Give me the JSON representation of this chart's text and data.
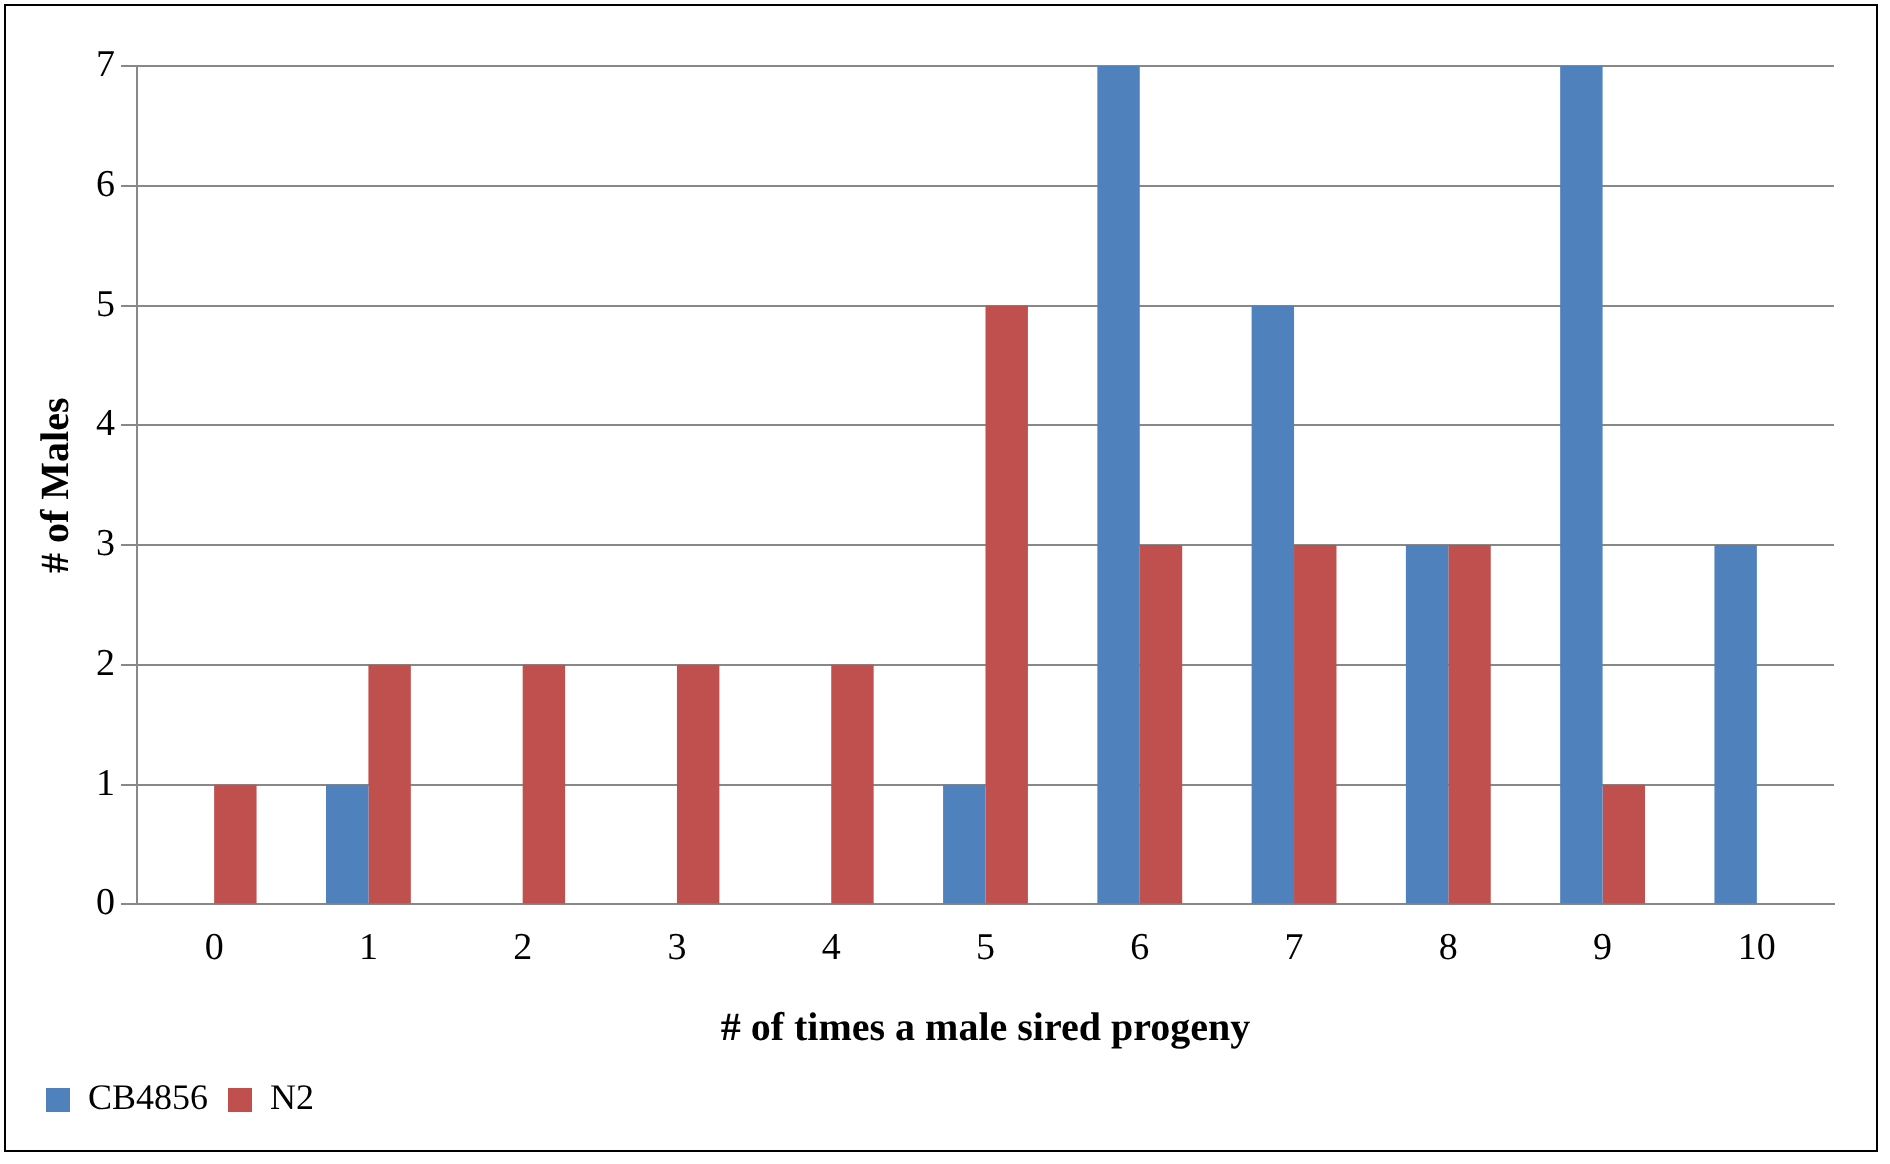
{
  "chart_data": {
    "type": "bar",
    "xlabel": "# of times a male sired progeny",
    "ylabel": "# of Males",
    "categories": [
      "0",
      "1",
      "2",
      "3",
      "4",
      "5",
      "6",
      "7",
      "8",
      "9",
      "10"
    ],
    "series": [
      {
        "name": "CB4856",
        "color": "#4f81bd",
        "values": [
          0,
          1,
          0,
          0,
          0,
          1,
          7,
          5,
          3,
          7,
          3
        ]
      },
      {
        "name": "N2",
        "color": "#c0504d",
        "values": [
          1,
          2,
          2,
          2,
          2,
          5,
          3,
          3,
          3,
          1,
          0
        ]
      }
    ],
    "ylim": [
      0,
      7
    ],
    "yticks": [
      0,
      1,
      2,
      3,
      4,
      5,
      6,
      7
    ],
    "grid": "y",
    "legend": "bottom left"
  }
}
